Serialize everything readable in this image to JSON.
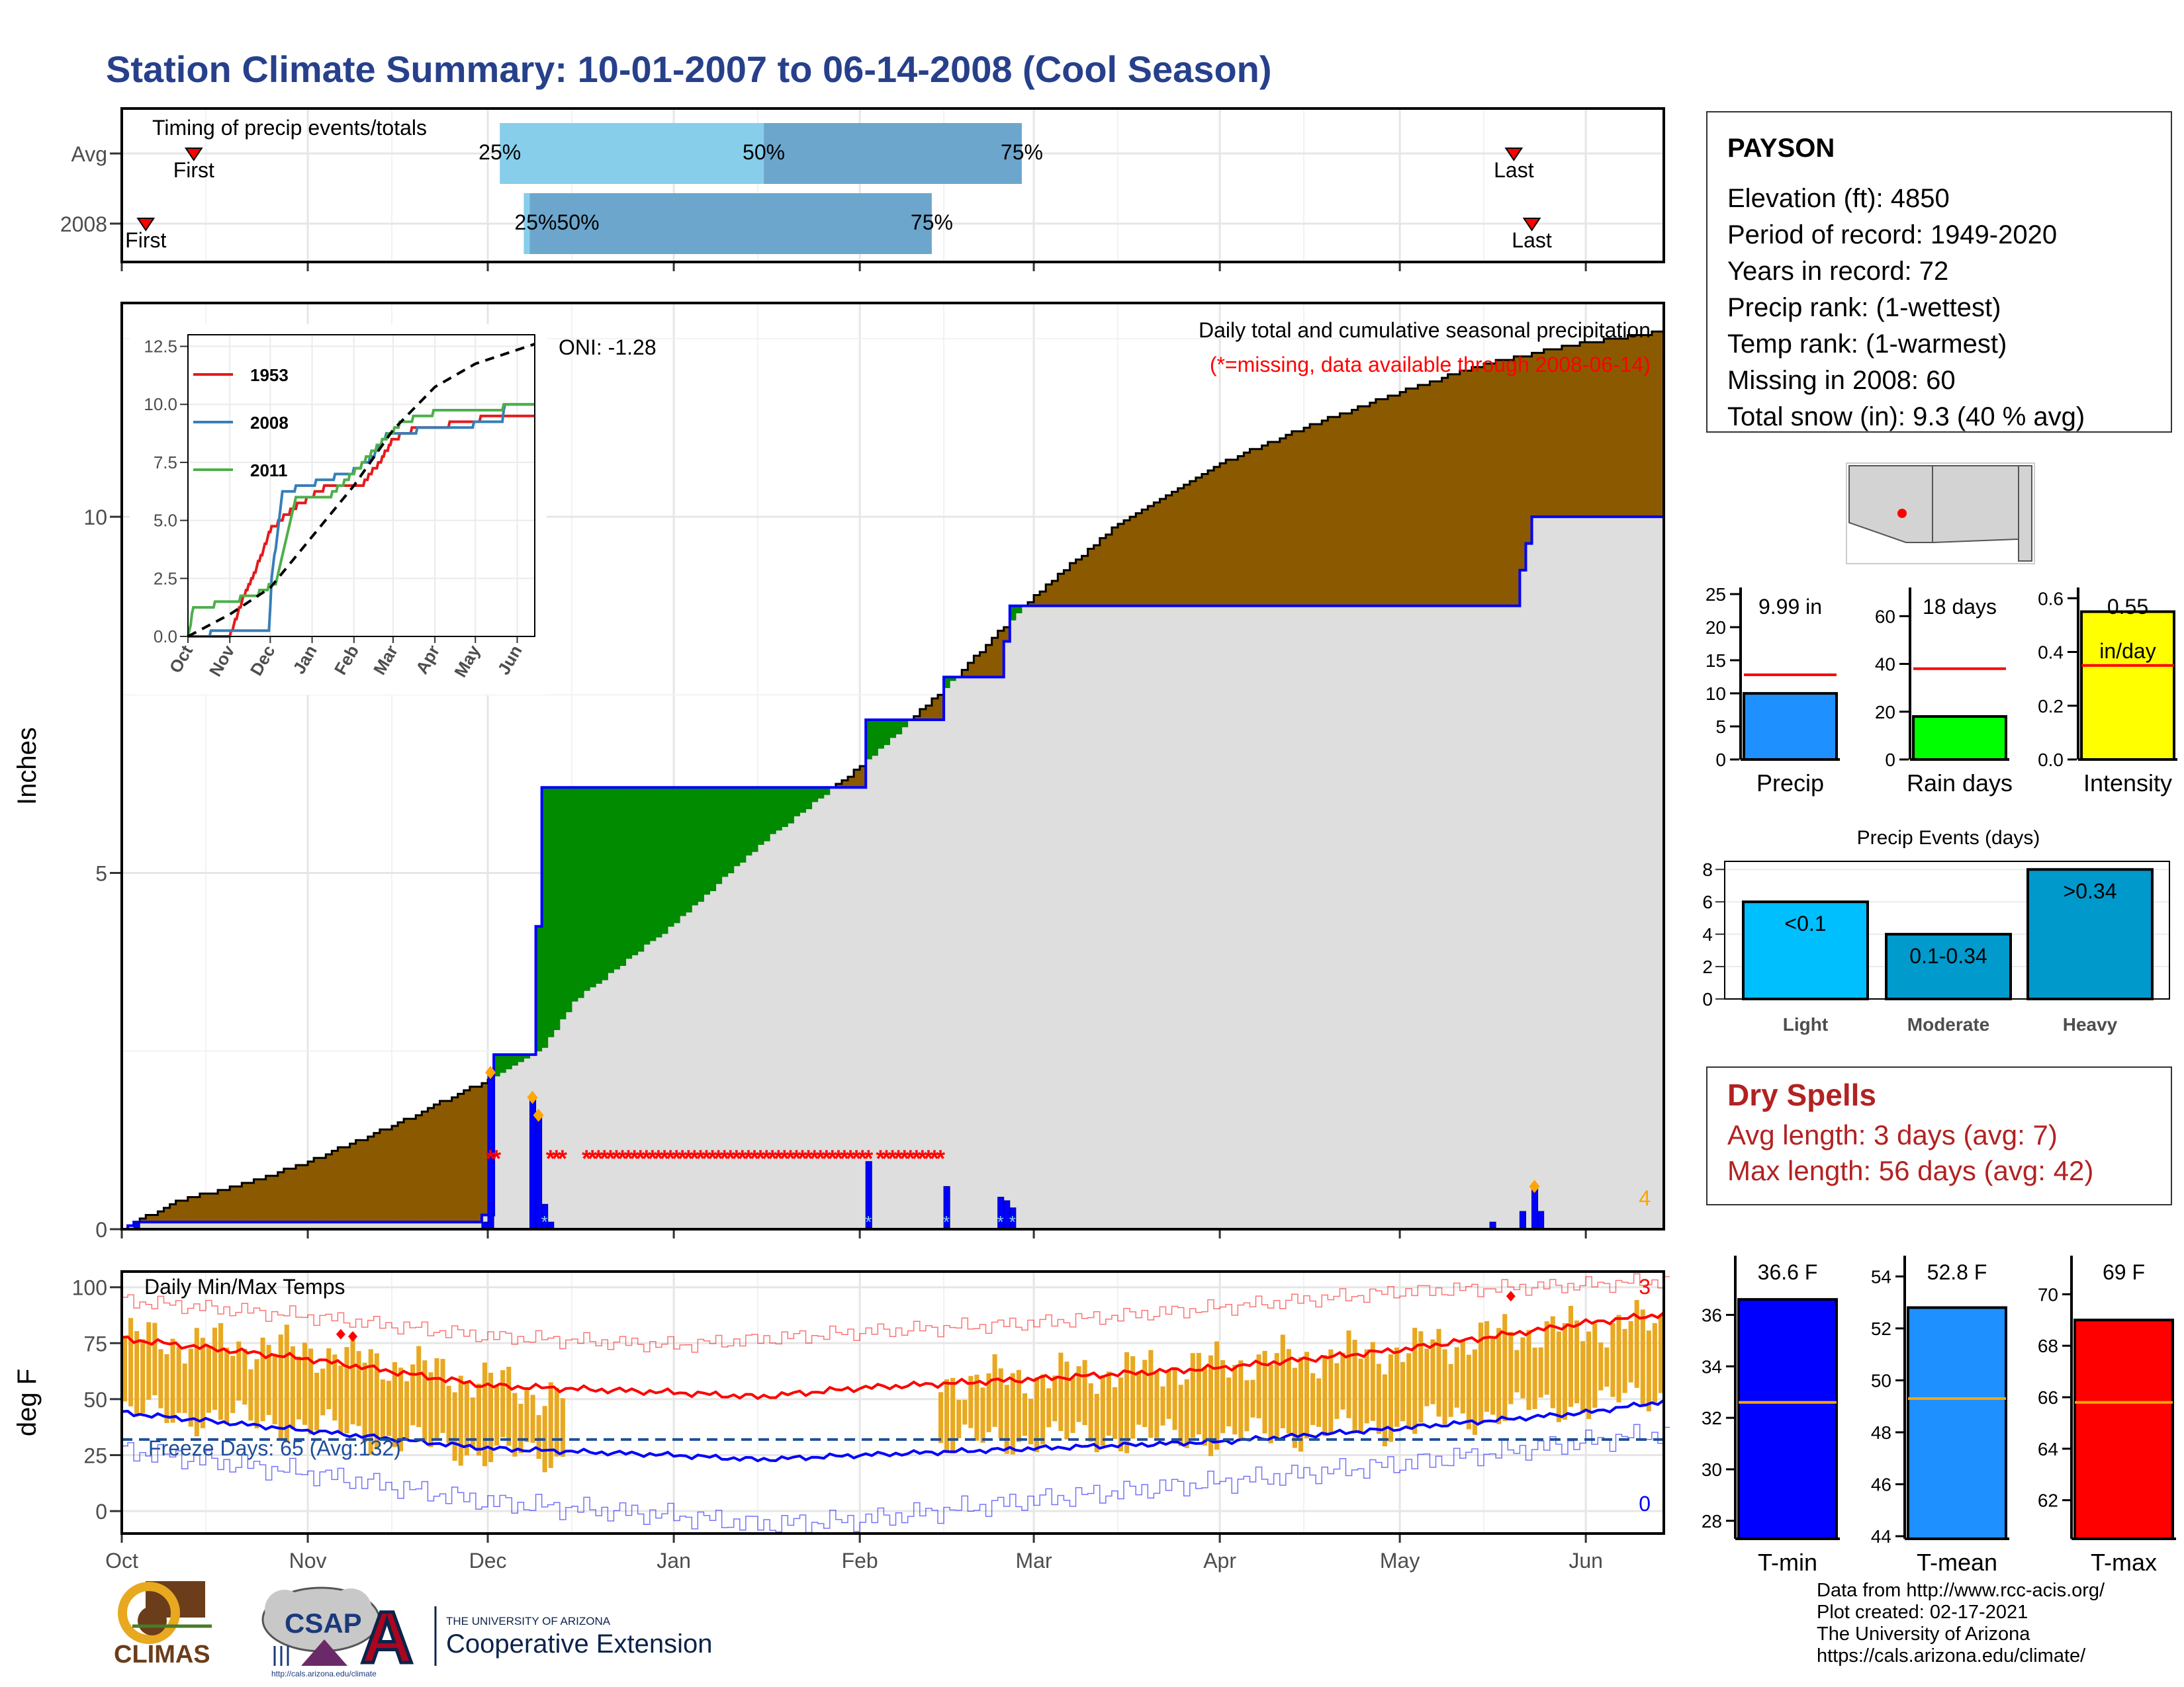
{
  "title": "Station Climate Summary: 10-01-2007 to 06-14-2008 (Cool Season)",
  "station": {
    "name": "PAYSON",
    "lines": [
      "Elevation (ft): 4850",
      "Period of record: 1949-2020",
      "Years in record: 72",
      "Precip rank:  (1-wettest)",
      "Temp rank:  (1-warmest)",
      "Missing in 2008: 60",
      "Total snow (in): 9.3 (40 % avg)"
    ]
  },
  "dry_spells": {
    "title": "Dry Spells",
    "avg": "Avg length: 3 days (avg: 7)",
    "max": "Max length: 56 days (avg: 42)"
  },
  "credits": [
    "Data from http://www.rcc-acis.org/",
    "Plot created: 02-17-2021",
    "The University of Arizona",
    "https://cals.arizona.edu/climate/"
  ],
  "logos": {
    "climas": "CLIMAS",
    "csap": "CSAP",
    "csap_url": "http://cals.arizona.edu/climate",
    "ua_small": "THE UNIVERSITY OF ARIZONA",
    "ua_big": "Cooperative Extension",
    "ua_letter": "A"
  },
  "colors": {
    "title": "#27408b",
    "deficit": "#8b5a00",
    "surplus": "#008b00",
    "observed_fill": "#dedede",
    "observed_line": "#0000ff",
    "missing": "#ff0000",
    "temp_bar": "#e8a820",
    "precip": "#1e90ff",
    "rain_days": "#00ff00",
    "intensity": "#ffff00",
    "light": "#00bfff",
    "moderate": "#009acd",
    "heavy": "#0099cc",
    "tmin": "#0000ff",
    "tmean": "#1e90ff",
    "tmax": "#ff0000",
    "dry": "#b22222"
  },
  "chart_data": [
    {
      "id": "timing",
      "type": "bar",
      "title": "Timing of precip events/totals",
      "categories": [
        "Avg",
        "2008"
      ],
      "x_ticks": [
        "Oct",
        "Nov",
        "Dec",
        "Jan",
        "Feb",
        "Mar",
        "Apr",
        "May",
        "Jun"
      ],
      "series": [
        {
          "name": "Avg",
          "first_date": "2007-10-13",
          "last_date": "2008-05-20",
          "p25": "2007-12-03",
          "p50": "2008-01-16",
          "p75": "2008-02-28"
        },
        {
          "name": "2008",
          "first_date": "2007-10-05",
          "last_date": "2008-05-23",
          "p25": "2007-12-07",
          "p50": "2007-12-08",
          "p75": "2008-02-13"
        }
      ],
      "labels": {
        "first": "First",
        "last": "Last",
        "p25": "25%",
        "p50": "50%",
        "p75": "75%",
        "overlap": "25%50%"
      }
    },
    {
      "id": "precip",
      "type": "area",
      "title": "Daily total and cumulative seasonal precipitation",
      "subtitle": "(*=missing, data available through 2008-06-14)",
      "ylabel": "Inches",
      "ylim": [
        0,
        13
      ],
      "y_ticks": [
        0,
        5,
        10
      ],
      "oni": "ONI: -1.28",
      "corner_count": "4",
      "average_cumulative": [
        [
          "2007-10-01",
          0
        ],
        [
          "2007-10-10",
          0.4
        ],
        [
          "2007-10-20",
          0.6
        ],
        [
          "2007-11-01",
          0.95
        ],
        [
          "2007-11-15",
          1.45
        ],
        [
          "2007-12-01",
          2.1
        ],
        [
          "2007-12-10",
          2.55
        ],
        [
          "2007-12-15",
          3.2
        ],
        [
          "2008-01-01",
          4.3
        ],
        [
          "2008-01-15",
          5.4
        ],
        [
          "2008-02-01",
          6.5
        ],
        [
          "2008-02-15",
          7.6
        ],
        [
          "2008-03-01",
          8.9
        ],
        [
          "2008-03-15",
          9.9
        ],
        [
          "2008-04-01",
          10.75
        ],
        [
          "2008-04-15",
          11.25
        ],
        [
          "2008-05-01",
          11.75
        ],
        [
          "2008-05-15",
          12.15
        ],
        [
          "2008-06-01",
          12.45
        ],
        [
          "2008-06-14",
          12.6
        ]
      ],
      "observed_cumulative": [
        [
          "2007-10-01",
          0
        ],
        [
          "2007-10-03",
          0.1
        ],
        [
          "2007-11-29",
          0.1
        ],
        [
          "2007-11-30",
          0.2
        ],
        [
          "2007-12-01",
          0.2
        ],
        [
          "2007-12-02",
          2.45
        ],
        [
          "2007-12-08",
          2.45
        ],
        [
          "2007-12-09",
          4.25
        ],
        [
          "2007-12-10",
          6.2
        ],
        [
          "2008-01-15",
          6.2
        ],
        [
          "2008-02-01",
          6.2
        ],
        [
          "2008-02-02",
          7.15
        ],
        [
          "2008-02-14",
          7.15
        ],
        [
          "2008-02-15",
          7.75
        ],
        [
          "2008-02-24",
          7.75
        ],
        [
          "2008-02-25",
          8.25
        ],
        [
          "2008-02-26",
          8.75
        ],
        [
          "2008-05-20",
          8.75
        ],
        [
          "2008-05-21",
          9.25
        ],
        [
          "2008-05-23",
          10.0
        ],
        [
          "2008-06-14",
          10.0
        ]
      ],
      "daily": [
        [
          "2007-10-03",
          0.1
        ],
        [
          "2007-11-30",
          0.1
        ],
        [
          "2007-12-01",
          2.2
        ],
        [
          "2007-12-08",
          1.85
        ],
        [
          "2007-12-09",
          1.6
        ],
        [
          "2007-12-10",
          0.35
        ],
        [
          "2007-12-11",
          0.1
        ],
        [
          "2008-02-02",
          0.95
        ],
        [
          "2008-02-15",
          0.6
        ],
        [
          "2008-02-24",
          0.45
        ],
        [
          "2008-02-25",
          0.4
        ],
        [
          "2008-02-26",
          0.3
        ],
        [
          "2008-05-16",
          0.1
        ],
        [
          "2008-05-21",
          0.25
        ],
        [
          "2008-05-23",
          0.6
        ],
        [
          "2008-05-24",
          0.25
        ]
      ],
      "snow_days": [
        "2007-12-01",
        "2007-12-08",
        "2007-12-09",
        "2008-05-23"
      ],
      "missing_ranges": [
        [
          "2007-12-01",
          "2007-12-02"
        ],
        [
          "2007-12-11",
          "2007-12-13"
        ],
        [
          "2007-12-17",
          "2008-02-02"
        ],
        [
          "2008-02-04",
          "2008-02-14"
        ]
      ],
      "inset": {
        "type": "line",
        "y_ticks": [
          0.0,
          2.5,
          5.0,
          7.5,
          10.0,
          12.5
        ],
        "x_ticks": [
          "Oct",
          "Nov",
          "Dec",
          "Jan",
          "Feb",
          "Mar",
          "Apr",
          "May",
          "Jun"
        ],
        "ylim": [
          0,
          13
        ],
        "series": [
          {
            "name": "1953",
            "color": "#e41a1c",
            "points": [
              [
                "2007-10-01",
                0
              ],
              [
                "2007-11-01",
                0
              ],
              [
                "2007-11-10",
                1.5
              ],
              [
                "2007-11-20",
                2.8
              ],
              [
                "2007-12-01",
                4.6
              ],
              [
                "2007-12-20",
                5.6
              ],
              [
                "2008-01-10",
                6.4
              ],
              [
                "2008-02-05",
                6.4
              ],
              [
                "2008-02-20",
                7.5
              ],
              [
                "2008-03-01",
                8.5
              ],
              [
                "2008-03-15",
                8.9
              ],
              [
                "2008-04-01",
                8.9
              ],
              [
                "2008-04-20",
                9.3
              ],
              [
                "2008-05-10",
                9.4
              ],
              [
                "2008-06-14",
                9.4
              ]
            ]
          },
          {
            "name": "2008",
            "color": "#377eb8",
            "points": [
              [
                "2007-10-01",
                0
              ],
              [
                "2007-10-03",
                0.1
              ],
              [
                "2007-11-30",
                0.2
              ],
              [
                "2007-12-02",
                2.45
              ],
              [
                "2007-12-10",
                6.2
              ],
              [
                "2008-02-02",
                7.15
              ],
              [
                "2008-02-15",
                7.75
              ],
              [
                "2008-02-26",
                8.75
              ],
              [
                "2008-05-21",
                9.25
              ],
              [
                "2008-05-23",
                10.0
              ],
              [
                "2008-06-14",
                10.0
              ]
            ]
          },
          {
            "name": "2011",
            "color": "#4daf4a",
            "points": [
              [
                "2007-10-01",
                0
              ],
              [
                "2007-10-05",
                1.2
              ],
              [
                "2007-11-01",
                1.5
              ],
              [
                "2007-11-20",
                1.8
              ],
              [
                "2007-12-05",
                2.3
              ],
              [
                "2007-12-20",
                5.9
              ],
              [
                "2008-01-15",
                6.1
              ],
              [
                "2008-02-05",
                7.3
              ],
              [
                "2008-02-20",
                8.3
              ],
              [
                "2008-03-05",
                9.1
              ],
              [
                "2008-03-25",
                9.6
              ],
              [
                "2008-04-15",
                9.7
              ],
              [
                "2008-05-10",
                9.7
              ],
              [
                "2008-05-30",
                10.0
              ],
              [
                "2008-06-14",
                10.0
              ]
            ]
          },
          {
            "name": "avg",
            "color": "#000000",
            "dashed": true,
            "points": [
              [
                "2007-10-01",
                0
              ],
              [
                "2007-11-01",
                0.95
              ],
              [
                "2007-12-01",
                2.1
              ],
              [
                "2008-01-01",
                4.3
              ],
              [
                "2008-02-01",
                6.5
              ],
              [
                "2008-03-01",
                8.9
              ],
              [
                "2008-04-01",
                10.75
              ],
              [
                "2008-05-01",
                11.75
              ],
              [
                "2008-06-14",
                12.6
              ]
            ]
          }
        ]
      }
    },
    {
      "id": "temps",
      "type": "bar",
      "title": "Daily Min/Max Temps",
      "ylabel": "deg F",
      "ylim": [
        -10,
        107
      ],
      "y_ticks": [
        0,
        25,
        50,
        75,
        100
      ],
      "x_ticks": [
        "Oct",
        "Nov",
        "Dec",
        "Jan",
        "Feb",
        "Mar",
        "Apr",
        "May",
        "Jun"
      ],
      "freeze_line": 32,
      "freeze_label": "Freeze Days: 65 (Avg:132)",
      "record_high_count": "3",
      "record_low_count": "0",
      "missing_range": [
        "2007-12-14",
        "2008-02-13"
      ],
      "avg_tmax": [
        [
          "2007-10-01",
          77
        ],
        [
          "2007-11-01",
          68
        ],
        [
          "2007-12-01",
          56
        ],
        [
          "2008-01-01",
          53
        ],
        [
          "2008-01-15",
          51
        ],
        [
          "2008-02-01",
          55
        ],
        [
          "2008-03-01",
          59
        ],
        [
          "2008-04-01",
          64
        ],
        [
          "2008-05-01",
          72
        ],
        [
          "2008-06-01",
          84
        ],
        [
          "2008-06-14",
          88
        ]
      ],
      "avg_tmin": [
        [
          "2007-10-01",
          44
        ],
        [
          "2007-11-01",
          36
        ],
        [
          "2007-12-01",
          28
        ],
        [
          "2008-01-01",
          25
        ],
        [
          "2008-01-15",
          23
        ],
        [
          "2008-02-01",
          25
        ],
        [
          "2008-03-01",
          28
        ],
        [
          "2008-04-01",
          31
        ],
        [
          "2008-05-01",
          37
        ],
        [
          "2008-06-01",
          44
        ],
        [
          "2008-06-14",
          49
        ]
      ],
      "record_max": [
        [
          "2007-10-01",
          94
        ],
        [
          "2007-11-01",
          87
        ],
        [
          "2007-12-01",
          78
        ],
        [
          "2008-01-01",
          74
        ],
        [
          "2008-02-01",
          80
        ],
        [
          "2008-03-01",
          84
        ],
        [
          "2008-04-01",
          91
        ],
        [
          "2008-05-01",
          98
        ],
        [
          "2008-06-01",
          101
        ],
        [
          "2008-06-14",
          103
        ]
      ],
      "record_min": [
        [
          "2007-10-01",
          27
        ],
        [
          "2007-11-01",
          17
        ],
        [
          "2007-12-01",
          4
        ],
        [
          "2008-01-01",
          -2
        ],
        [
          "2008-01-15",
          -6
        ],
        [
          "2008-02-01",
          -4
        ],
        [
          "2008-03-01",
          5
        ],
        [
          "2008-04-01",
          13
        ],
        [
          "2008-05-01",
          21
        ],
        [
          "2008-06-01",
          31
        ],
        [
          "2008-06-14",
          35
        ]
      ],
      "tmax_anchor": [
        [
          "2007-10-01",
          78
        ],
        [
          "2007-10-15",
          75
        ],
        [
          "2007-11-01",
          72
        ],
        [
          "2007-11-15",
          66
        ],
        [
          "2007-12-01",
          58
        ],
        [
          "2007-12-10",
          52
        ],
        [
          "2008-02-14",
          58
        ],
        [
          "2008-03-01",
          60
        ],
        [
          "2008-04-01",
          66
        ],
        [
          "2008-05-01",
          72
        ],
        [
          "2008-05-20",
          80
        ],
        [
          "2008-06-01",
          82
        ],
        [
          "2008-06-14",
          85
        ]
      ],
      "tmin_anchor": [
        [
          "2007-10-01",
          44
        ],
        [
          "2007-10-15",
          42
        ],
        [
          "2007-11-01",
          38
        ],
        [
          "2007-11-15",
          32
        ],
        [
          "2007-12-01",
          26
        ],
        [
          "2007-12-10",
          24
        ],
        [
          "2008-02-14",
          30
        ],
        [
          "2008-03-01",
          33
        ],
        [
          "2008-04-01",
          33
        ],
        [
          "2008-05-01",
          38
        ],
        [
          "2008-05-20",
          45
        ],
        [
          "2008-06-01",
          48
        ],
        [
          "2008-06-14",
          52
        ]
      ],
      "record_hits": [
        [
          "2007-11-06",
          79
        ],
        [
          "2007-11-08",
          78
        ],
        [
          "2008-05-19",
          96
        ]
      ]
    },
    {
      "id": "summary_bars",
      "type": "bar",
      "panels": [
        {
          "label": "Precip",
          "value": 9.99,
          "value_label": "9.99 in",
          "avg": 12.8,
          "ylim": [
            0,
            26
          ],
          "y_ticks": [
            0,
            5,
            10,
            15,
            20,
            25
          ]
        },
        {
          "label": "Rain days",
          "value": 18,
          "value_label": "18 days",
          "avg": 38,
          "ylim": [
            0,
            72
          ],
          "y_ticks": [
            0,
            20,
            40,
            60
          ]
        },
        {
          "label": "Intensity",
          "value": 0.55,
          "value_label": "0.55",
          "value_unit": "in/day",
          "avg": 0.35,
          "ylim": [
            0,
            0.64
          ],
          "y_ticks": [
            0.0,
            0.2,
            0.4,
            0.6
          ]
        }
      ]
    },
    {
      "id": "events",
      "type": "bar",
      "title": "Precip Events (days)",
      "categories": [
        "Light",
        "Moderate",
        "Heavy"
      ],
      "values": [
        6,
        4,
        8
      ],
      "value_labels": [
        "<0.1",
        "0.1-0.34",
        ">0.34"
      ],
      "ylim": [
        0,
        8.5
      ],
      "y_ticks": [
        0,
        2,
        4,
        6,
        8
      ]
    },
    {
      "id": "temp_summary",
      "type": "bar",
      "panels": [
        {
          "label": "T-min",
          "value": 36.6,
          "value_label": "36.6 F",
          "avg": 32.6,
          "ylim": [
            27.3,
            38.3
          ],
          "y_ticks": [
            28,
            30,
            32,
            34,
            36
          ]
        },
        {
          "label": "T-mean",
          "value": 52.8,
          "value_label": "52.8 F",
          "avg": 49.3,
          "ylim": [
            43.9,
            54.8
          ],
          "y_ticks": [
            44,
            46,
            48,
            50,
            52,
            54
          ]
        },
        {
          "label": "T-max",
          "value": 69,
          "value_label": "69 F",
          "avg": 65.8,
          "ylim": [
            60.5,
            71.5
          ],
          "y_ticks": [
            62,
            64,
            66,
            68,
            70
          ]
        }
      ]
    }
  ]
}
